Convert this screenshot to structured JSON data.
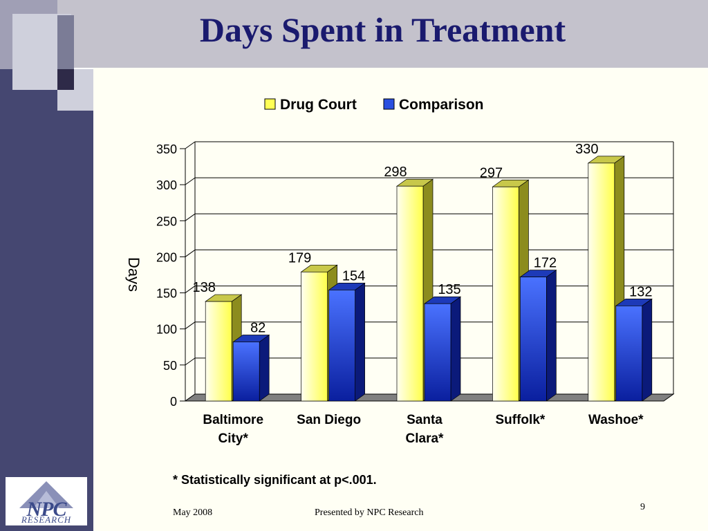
{
  "slide": {
    "title": "Days Spent in Treatment",
    "footnote": "* Statistically significant at p<.001.",
    "footer_date": "May 2008",
    "footer_presenter": "Presented by NPC Research",
    "page_number": "9",
    "logo_text": "NPC",
    "logo_subtext": "RESEARCH"
  },
  "colors": {
    "title": "#1a1a6e",
    "drug_court": "#ffff55",
    "comparison": "#2a4fe0"
  },
  "chart_data": {
    "type": "bar",
    "title": "",
    "xlabel": "",
    "ylabel": "Days",
    "ylim": [
      0,
      350
    ],
    "yticks": [
      0,
      50,
      100,
      150,
      200,
      250,
      300,
      350
    ],
    "grid": true,
    "legend_position": "top",
    "categories": [
      [
        "Baltimore",
        "City*"
      ],
      [
        "San Diego"
      ],
      [
        "Santa",
        "Clara*"
      ],
      [
        "Suffolk*"
      ],
      [
        "Washoe*"
      ]
    ],
    "series": [
      {
        "name": "Drug Court",
        "values": [
          138,
          179,
          298,
          297,
          330
        ],
        "color": "#ffff55"
      },
      {
        "name": "Comparison",
        "values": [
          82,
          154,
          135,
          172,
          132
        ],
        "color": "#2a4fe0"
      }
    ]
  }
}
